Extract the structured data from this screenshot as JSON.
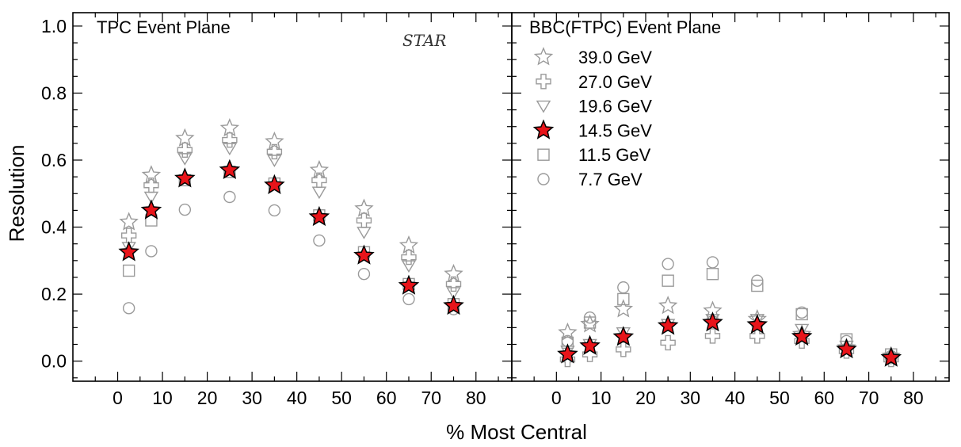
{
  "chart_data": {
    "type": "scatter",
    "ylabel": "Resolution",
    "xlabel": "% Most Central",
    "xlim": [
      -10,
      88
    ],
    "ylim": [
      -0.06,
      1.04
    ],
    "x_ticks": [
      0,
      10,
      20,
      30,
      40,
      50,
      60,
      70,
      80
    ],
    "y_ticks": [
      0.0,
      0.2,
      0.4,
      0.6,
      0.8,
      1.0
    ],
    "y_tick_labels": [
      "0.0",
      "0.2",
      "0.4",
      "0.6",
      "0.8",
      "1.0"
    ],
    "colors": {
      "gray": "#9a9a9a",
      "highlight_fill": "#e8141a",
      "highlight_stroke": "#000000",
      "axes": "#000000"
    },
    "watermark": "STAR",
    "legend": {
      "placement": "right panel, upper left",
      "entries": [
        {
          "label": "39.0 GeV",
          "marker": "star-open"
        },
        {
          "label": "27.0 GeV",
          "marker": "cross-open"
        },
        {
          "label": "19.6 GeV",
          "marker": "triangle-down-open"
        },
        {
          "label": "14.5 GeV",
          "marker": "star-filled"
        },
        {
          "label": "11.5 GeV",
          "marker": "square-open"
        },
        {
          "label": " 7.7 GeV",
          "marker": "circle-open"
        }
      ]
    },
    "x": [
      2.5,
      7.5,
      15,
      25,
      35,
      45,
      55,
      65,
      75
    ],
    "panels": [
      {
        "title": "TPC Event Plane",
        "series": [
          {
            "name": "39.0 GeV",
            "marker": "star-open",
            "values": [
              0.415,
              0.555,
              0.665,
              0.695,
              0.655,
              0.57,
              0.455,
              0.345,
              0.26
            ]
          },
          {
            "name": "27.0 GeV",
            "marker": "cross-open",
            "values": [
              0.375,
              0.525,
              0.63,
              0.66,
              0.625,
              0.54,
              0.42,
              0.31,
              0.23
            ]
          },
          {
            "name": "19.6 GeV",
            "marker": "triangle-down-open",
            "values": [
              0.34,
              0.49,
              0.605,
              0.635,
              0.6,
              0.505,
              0.385,
              0.285,
              0.205
            ]
          },
          {
            "name": "11.5 GeV",
            "marker": "square-open",
            "values": [
              0.27,
              0.42,
              0.54,
              0.565,
              0.53,
              0.435,
              0.325,
              0.23,
              0.17
            ]
          },
          {
            "name": " 7.7 GeV",
            "marker": "circle-open",
            "values": [
              0.158,
              0.328,
              0.452,
              0.49,
              0.45,
              0.36,
              0.26,
              0.185,
              0.155
            ]
          },
          {
            "name": "14.5 GeV",
            "marker": "star-filled",
            "values": [
              0.325,
              0.45,
              0.545,
              0.57,
              0.525,
              0.43,
              0.315,
              0.225,
              0.165
            ]
          }
        ]
      },
      {
        "title": "BBC(FTPC) Event Plane",
        "series": [
          {
            "name": "39.0 GeV",
            "marker": "star-open",
            "values": [
              0.085,
              0.11,
              0.155,
              0.165,
              0.15,
              0.125,
              0.08,
              0.04,
              0.015
            ]
          },
          {
            "name": "27.0 GeV",
            "marker": "cross-open",
            "values": [
              0.005,
              0.02,
              0.035,
              0.055,
              0.075,
              0.075,
              0.06,
              0.03,
              0.005
            ]
          },
          {
            "name": "19.6 GeV",
            "marker": "triangle-down-open",
            "values": [
              0.03,
              0.05,
              0.085,
              0.11,
              0.125,
              0.125,
              0.095,
              0.045,
              0.01
            ]
          },
          {
            "name": "11.5 GeV",
            "marker": "square-open",
            "values": [
              0.055,
              0.115,
              0.185,
              0.24,
              0.26,
              0.225,
              0.14,
              0.065,
              0.02
            ]
          },
          {
            "name": " 7.7 GeV",
            "marker": "circle-open",
            "values": [
              0.06,
              0.13,
              0.22,
              0.29,
              0.295,
              0.24,
              0.145,
              0.06,
              0.015
            ]
          },
          {
            "name": "14.5 GeV",
            "marker": "star-filled",
            "values": [
              0.02,
              0.045,
              0.072,
              0.105,
              0.115,
              0.108,
              0.073,
              0.035,
              0.01
            ]
          }
        ]
      }
    ]
  }
}
